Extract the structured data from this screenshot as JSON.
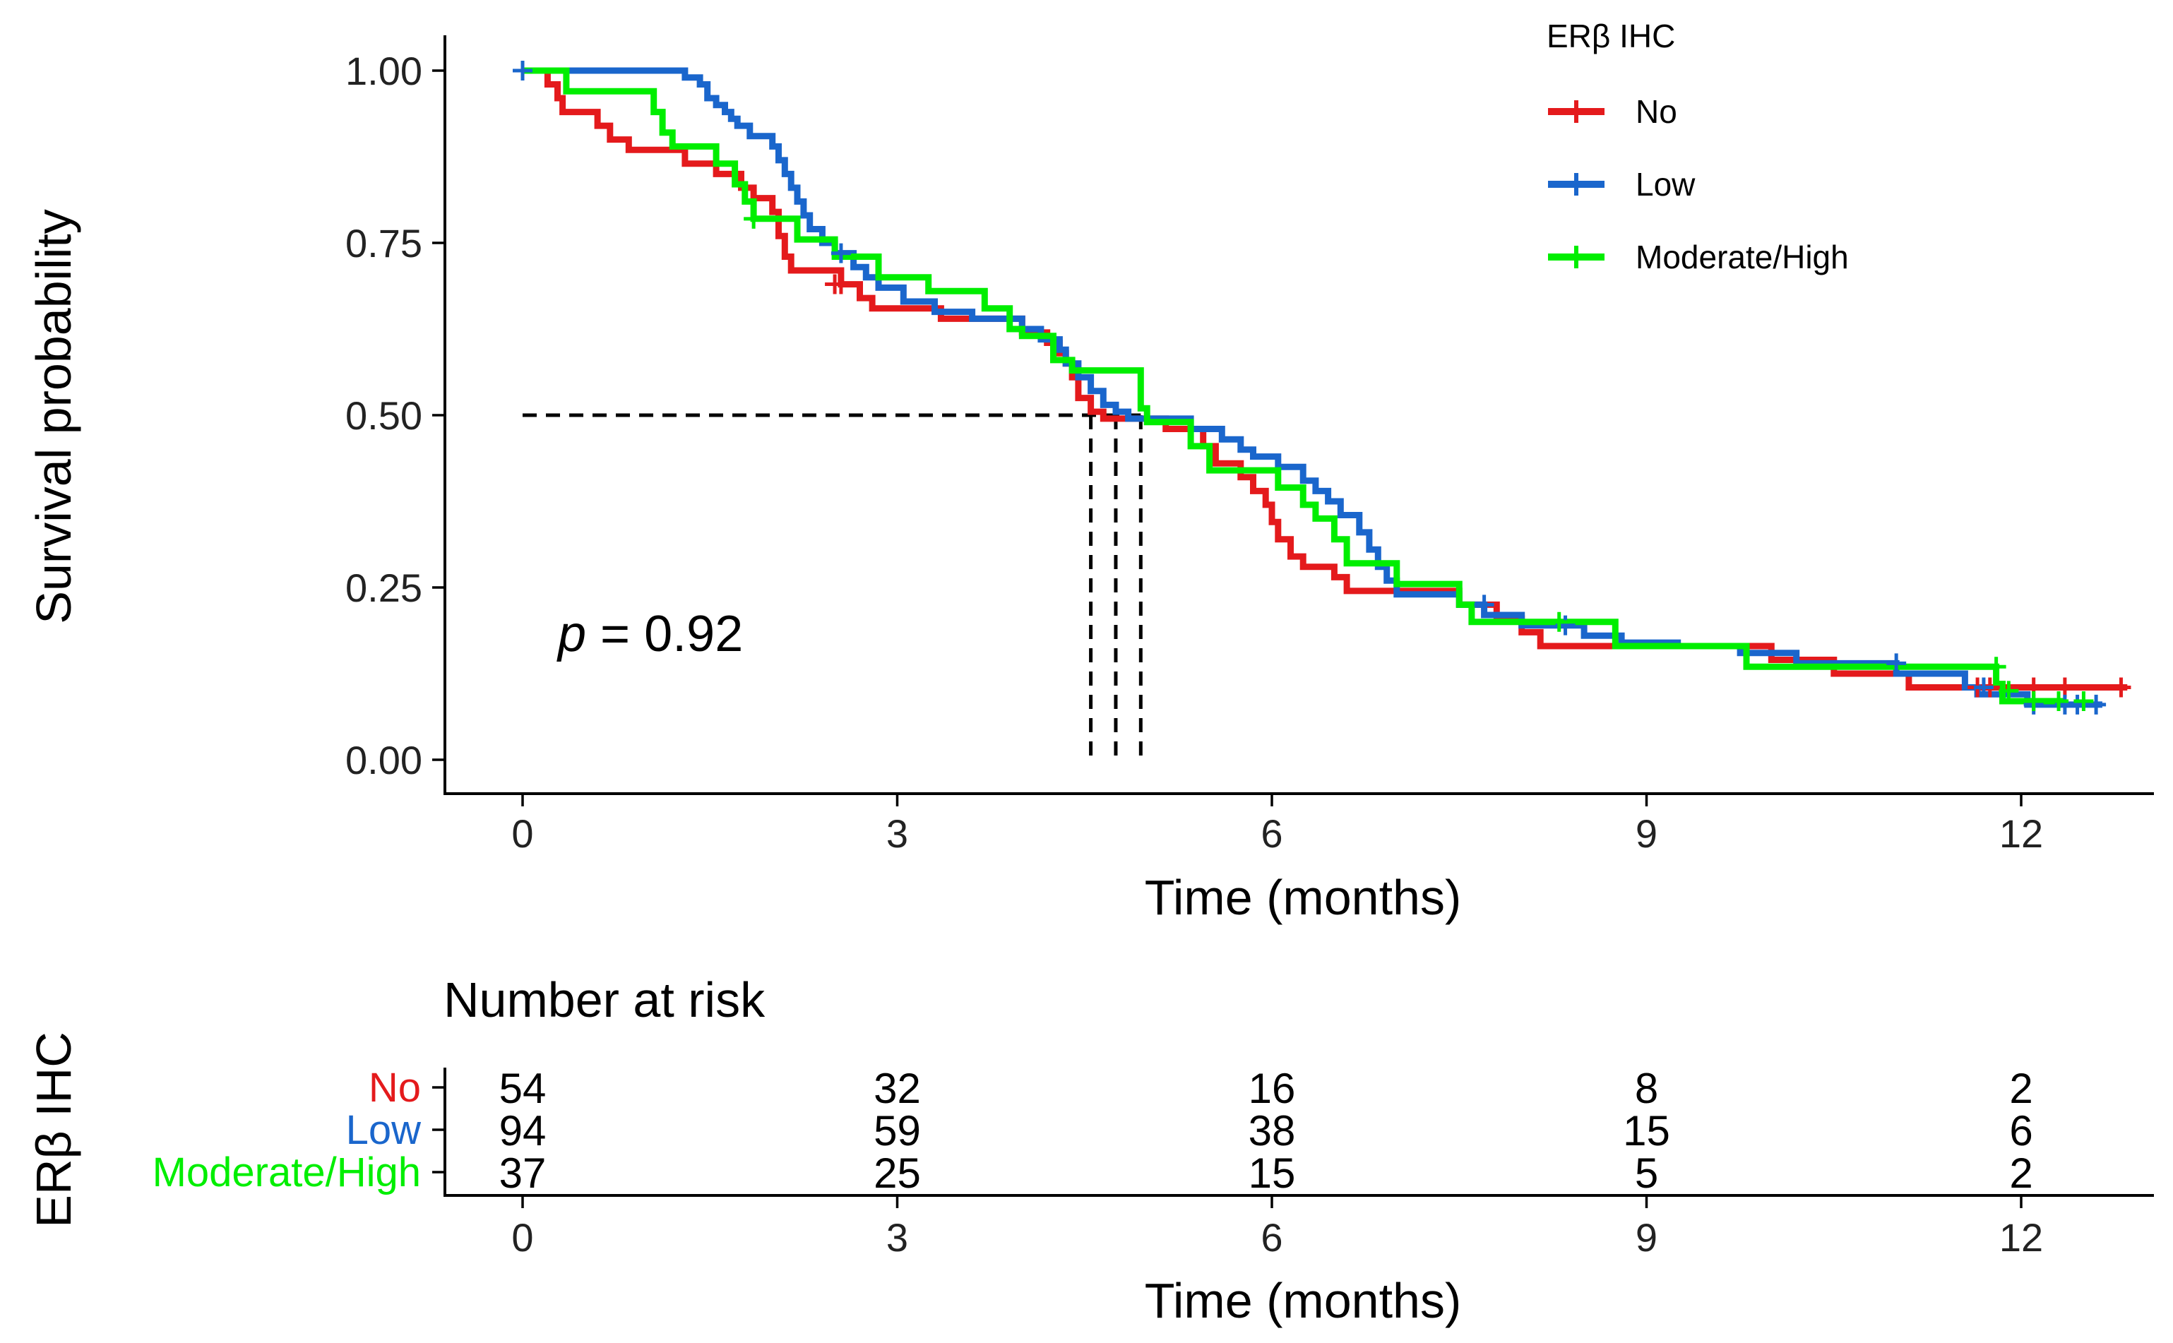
{
  "chart_data": {
    "type": "line",
    "subtype": "kaplan-meier",
    "legend_title": "ERβ IHC",
    "xlabel": "Time (months)",
    "ylabel": "Survival probability",
    "x_ticks": [
      0,
      3,
      6,
      9,
      12
    ],
    "y_ticks": [
      0.0,
      0.25,
      0.5,
      0.75,
      1.0
    ],
    "y_tick_labels": [
      "0.00",
      "0.25",
      "0.50",
      "0.75",
      "1.00"
    ],
    "xlim": [
      -0.6,
      12.95
    ],
    "ylim": [
      -0.05,
      1.05
    ],
    "p_value_label": "p",
    "p_value_text": " = 0.92",
    "legend_position": "top-right",
    "median_line_y": 0.5,
    "median_times": [
      4.55,
      4.75,
      4.95
    ],
    "series": [
      {
        "name": "No",
        "color": "#e41a1c",
        "points": [
          [
            0,
            1.0
          ],
          [
            0.2,
            1.0
          ],
          [
            0.2,
            0.98
          ],
          [
            0.28,
            0.98
          ],
          [
            0.28,
            0.96
          ],
          [
            0.32,
            0.96
          ],
          [
            0.32,
            0.94
          ],
          [
            0.6,
            0.94
          ],
          [
            0.6,
            0.92
          ],
          [
            0.7,
            0.92
          ],
          [
            0.7,
            0.9
          ],
          [
            0.85,
            0.9
          ],
          [
            0.85,
            0.885
          ],
          [
            1.3,
            0.885
          ],
          [
            1.3,
            0.865
          ],
          [
            1.55,
            0.865
          ],
          [
            1.55,
            0.85
          ],
          [
            1.75,
            0.85
          ],
          [
            1.75,
            0.83
          ],
          [
            1.85,
            0.83
          ],
          [
            1.85,
            0.815
          ],
          [
            2.0,
            0.815
          ],
          [
            2.0,
            0.795
          ],
          [
            2.05,
            0.795
          ],
          [
            2.05,
            0.76
          ],
          [
            2.1,
            0.76
          ],
          [
            2.1,
            0.73
          ],
          [
            2.15,
            0.73
          ],
          [
            2.15,
            0.71
          ],
          [
            2.55,
            0.71
          ],
          [
            2.55,
            0.69
          ],
          [
            2.7,
            0.69
          ],
          [
            2.7,
            0.67
          ],
          [
            2.8,
            0.67
          ],
          [
            2.8,
            0.655
          ],
          [
            3.35,
            0.655
          ],
          [
            3.35,
            0.64
          ],
          [
            4.0,
            0.64
          ],
          [
            4.0,
            0.62
          ],
          [
            4.2,
            0.62
          ],
          [
            4.2,
            0.605
          ],
          [
            4.3,
            0.605
          ],
          [
            4.3,
            0.59
          ],
          [
            4.35,
            0.59
          ],
          [
            4.35,
            0.575
          ],
          [
            4.4,
            0.575
          ],
          [
            4.4,
            0.555
          ],
          [
            4.45,
            0.555
          ],
          [
            4.45,
            0.525
          ],
          [
            4.55,
            0.525
          ],
          [
            4.55,
            0.505
          ],
          [
            4.65,
            0.505
          ],
          [
            4.65,
            0.495
          ],
          [
            5.15,
            0.495
          ],
          [
            5.15,
            0.48
          ],
          [
            5.45,
            0.48
          ],
          [
            5.45,
            0.455
          ],
          [
            5.55,
            0.455
          ],
          [
            5.55,
            0.43
          ],
          [
            5.75,
            0.43
          ],
          [
            5.75,
            0.41
          ],
          [
            5.85,
            0.41
          ],
          [
            5.85,
            0.39
          ],
          [
            5.95,
            0.39
          ],
          [
            5.95,
            0.37
          ],
          [
            6.0,
            0.37
          ],
          [
            6.0,
            0.345
          ],
          [
            6.05,
            0.345
          ],
          [
            6.05,
            0.32
          ],
          [
            6.15,
            0.32
          ],
          [
            6.15,
            0.295
          ],
          [
            6.25,
            0.295
          ],
          [
            6.25,
            0.28
          ],
          [
            6.5,
            0.28
          ],
          [
            6.5,
            0.265
          ],
          [
            6.6,
            0.265
          ],
          [
            6.6,
            0.245
          ],
          [
            7.5,
            0.245
          ],
          [
            7.5,
            0.225
          ],
          [
            7.8,
            0.225
          ],
          [
            7.8,
            0.205
          ],
          [
            8.0,
            0.205
          ],
          [
            8.0,
            0.185
          ],
          [
            8.15,
            0.185
          ],
          [
            8.15,
            0.165
          ],
          [
            10.0,
            0.165
          ],
          [
            10.0,
            0.145
          ],
          [
            10.5,
            0.145
          ],
          [
            10.5,
            0.125
          ],
          [
            11.1,
            0.125
          ],
          [
            11.1,
            0.105
          ],
          [
            12.85,
            0.105
          ]
        ],
        "censored": [
          [
            2.5,
            0.69
          ],
          [
            2.55,
            0.69
          ],
          [
            11.65,
            0.105
          ],
          [
            11.75,
            0.105
          ],
          [
            12.1,
            0.105
          ],
          [
            12.35,
            0.105
          ],
          [
            12.8,
            0.105
          ]
        ]
      },
      {
        "name": "Low",
        "color": "#1a66cc",
        "points": [
          [
            0,
            1.0
          ],
          [
            1.3,
            1.0
          ],
          [
            1.3,
            0.99
          ],
          [
            1.42,
            0.99
          ],
          [
            1.42,
            0.98
          ],
          [
            1.48,
            0.98
          ],
          [
            1.48,
            0.96
          ],
          [
            1.55,
            0.96
          ],
          [
            1.55,
            0.95
          ],
          [
            1.62,
            0.95
          ],
          [
            1.62,
            0.94
          ],
          [
            1.67,
            0.94
          ],
          [
            1.67,
            0.93
          ],
          [
            1.72,
            0.93
          ],
          [
            1.72,
            0.92
          ],
          [
            1.82,
            0.92
          ],
          [
            1.82,
            0.905
          ],
          [
            2.0,
            0.905
          ],
          [
            2.0,
            0.89
          ],
          [
            2.05,
            0.89
          ],
          [
            2.05,
            0.87
          ],
          [
            2.1,
            0.87
          ],
          [
            2.1,
            0.85
          ],
          [
            2.15,
            0.85
          ],
          [
            2.15,
            0.83
          ],
          [
            2.2,
            0.83
          ],
          [
            2.2,
            0.81
          ],
          [
            2.25,
            0.81
          ],
          [
            2.25,
            0.79
          ],
          [
            2.3,
            0.79
          ],
          [
            2.3,
            0.77
          ],
          [
            2.4,
            0.77
          ],
          [
            2.4,
            0.75
          ],
          [
            2.5,
            0.75
          ],
          [
            2.5,
            0.735
          ],
          [
            2.65,
            0.735
          ],
          [
            2.65,
            0.715
          ],
          [
            2.75,
            0.715
          ],
          [
            2.75,
            0.7
          ],
          [
            2.85,
            0.7
          ],
          [
            2.85,
            0.685
          ],
          [
            3.05,
            0.685
          ],
          [
            3.05,
            0.665
          ],
          [
            3.3,
            0.665
          ],
          [
            3.3,
            0.65
          ],
          [
            3.6,
            0.65
          ],
          [
            3.6,
            0.64
          ],
          [
            4.0,
            0.64
          ],
          [
            4.0,
            0.625
          ],
          [
            4.15,
            0.625
          ],
          [
            4.15,
            0.61
          ],
          [
            4.3,
            0.61
          ],
          [
            4.3,
            0.595
          ],
          [
            4.35,
            0.595
          ],
          [
            4.35,
            0.575
          ],
          [
            4.45,
            0.575
          ],
          [
            4.45,
            0.555
          ],
          [
            4.55,
            0.555
          ],
          [
            4.55,
            0.535
          ],
          [
            4.65,
            0.535
          ],
          [
            4.65,
            0.515
          ],
          [
            4.75,
            0.515
          ],
          [
            4.75,
            0.505
          ],
          [
            4.85,
            0.505
          ],
          [
            4.85,
            0.495
          ],
          [
            5.35,
            0.495
          ],
          [
            5.35,
            0.48
          ],
          [
            5.6,
            0.48
          ],
          [
            5.6,
            0.465
          ],
          [
            5.75,
            0.465
          ],
          [
            5.75,
            0.45
          ],
          [
            5.85,
            0.45
          ],
          [
            5.85,
            0.44
          ],
          [
            6.05,
            0.44
          ],
          [
            6.05,
            0.425
          ],
          [
            6.25,
            0.425
          ],
          [
            6.25,
            0.405
          ],
          [
            6.35,
            0.405
          ],
          [
            6.35,
            0.39
          ],
          [
            6.45,
            0.39
          ],
          [
            6.45,
            0.375
          ],
          [
            6.55,
            0.375
          ],
          [
            6.55,
            0.355
          ],
          [
            6.7,
            0.355
          ],
          [
            6.7,
            0.33
          ],
          [
            6.78,
            0.33
          ],
          [
            6.78,
            0.305
          ],
          [
            6.85,
            0.305
          ],
          [
            6.85,
            0.28
          ],
          [
            6.92,
            0.28
          ],
          [
            6.92,
            0.26
          ],
          [
            7.0,
            0.26
          ],
          [
            7.0,
            0.24
          ],
          [
            7.5,
            0.24
          ],
          [
            7.5,
            0.225
          ],
          [
            7.7,
            0.225
          ],
          [
            7.7,
            0.21
          ],
          [
            8.0,
            0.21
          ],
          [
            8.0,
            0.195
          ],
          [
            8.5,
            0.195
          ],
          [
            8.5,
            0.18
          ],
          [
            8.8,
            0.18
          ],
          [
            8.8,
            0.17
          ],
          [
            9.25,
            0.17
          ],
          [
            9.25,
            0.165
          ],
          [
            9.75,
            0.165
          ],
          [
            9.75,
            0.155
          ],
          [
            10.2,
            0.155
          ],
          [
            10.2,
            0.14
          ],
          [
            11.0,
            0.14
          ],
          [
            11.0,
            0.125
          ],
          [
            11.55,
            0.125
          ],
          [
            11.55,
            0.105
          ],
          [
            11.65,
            0.105
          ],
          [
            11.65,
            0.095
          ],
          [
            12.05,
            0.095
          ],
          [
            12.05,
            0.08
          ],
          [
            12.65,
            0.08
          ]
        ],
        "censored": [
          [
            0,
            1.0
          ],
          [
            2.55,
            0.735
          ],
          [
            7.7,
            0.225
          ],
          [
            8.35,
            0.195
          ],
          [
            11.0,
            0.14
          ],
          [
            11.7,
            0.105
          ],
          [
            12.1,
            0.08
          ],
          [
            12.35,
            0.08
          ],
          [
            12.45,
            0.08
          ],
          [
            12.6,
            0.08
          ]
        ]
      },
      {
        "name": "Moderate/High",
        "color": "#00ee00",
        "points": [
          [
            0,
            1.0
          ],
          [
            0.35,
            1.0
          ],
          [
            0.35,
            0.97
          ],
          [
            1.05,
            0.97
          ],
          [
            1.05,
            0.94
          ],
          [
            1.12,
            0.94
          ],
          [
            1.12,
            0.91
          ],
          [
            1.2,
            0.91
          ],
          [
            1.2,
            0.89
          ],
          [
            1.55,
            0.89
          ],
          [
            1.55,
            0.865
          ],
          [
            1.7,
            0.865
          ],
          [
            1.7,
            0.835
          ],
          [
            1.78,
            0.835
          ],
          [
            1.78,
            0.81
          ],
          [
            1.85,
            0.81
          ],
          [
            1.85,
            0.785
          ],
          [
            2.2,
            0.785
          ],
          [
            2.2,
            0.755
          ],
          [
            2.5,
            0.755
          ],
          [
            2.5,
            0.73
          ],
          [
            2.85,
            0.73
          ],
          [
            2.85,
            0.7
          ],
          [
            3.25,
            0.7
          ],
          [
            3.25,
            0.68
          ],
          [
            3.7,
            0.68
          ],
          [
            3.7,
            0.655
          ],
          [
            3.9,
            0.655
          ],
          [
            3.9,
            0.625
          ],
          [
            4.0,
            0.625
          ],
          [
            4.0,
            0.615
          ],
          [
            4.25,
            0.615
          ],
          [
            4.25,
            0.58
          ],
          [
            4.4,
            0.58
          ],
          [
            4.4,
            0.565
          ],
          [
            4.95,
            0.565
          ],
          [
            4.95,
            0.51
          ],
          [
            5.0,
            0.51
          ],
          [
            5.0,
            0.49
          ],
          [
            5.35,
            0.49
          ],
          [
            5.35,
            0.455
          ],
          [
            5.5,
            0.455
          ],
          [
            5.5,
            0.42
          ],
          [
            6.05,
            0.42
          ],
          [
            6.05,
            0.395
          ],
          [
            6.25,
            0.395
          ],
          [
            6.25,
            0.37
          ],
          [
            6.35,
            0.37
          ],
          [
            6.35,
            0.35
          ],
          [
            6.5,
            0.35
          ],
          [
            6.5,
            0.32
          ],
          [
            6.6,
            0.32
          ],
          [
            6.6,
            0.285
          ],
          [
            7.0,
            0.285
          ],
          [
            7.0,
            0.255
          ],
          [
            7.5,
            0.255
          ],
          [
            7.5,
            0.225
          ],
          [
            7.6,
            0.225
          ],
          [
            7.6,
            0.2
          ],
          [
            8.75,
            0.2
          ],
          [
            8.75,
            0.165
          ],
          [
            9.8,
            0.165
          ],
          [
            9.8,
            0.135
          ],
          [
            11.8,
            0.135
          ],
          [
            11.8,
            0.11
          ],
          [
            11.85,
            0.11
          ],
          [
            11.85,
            0.085
          ],
          [
            12.35,
            0.085
          ]
        ],
        "censored": [
          [
            1.85,
            0.785
          ],
          [
            8.3,
            0.2
          ],
          [
            11.8,
            0.135
          ],
          [
            11.9,
            0.1
          ],
          [
            12.1,
            0.085
          ],
          [
            12.3,
            0.085
          ],
          [
            12.5,
            0.085
          ]
        ]
      }
    ]
  },
  "risk_table": {
    "title": "Number at risk",
    "ylabel": "ERβ IHC",
    "xlabel": "Time (months)",
    "times": [
      0,
      3,
      6,
      9,
      12
    ],
    "rows": [
      {
        "label": "No",
        "color": "#e41a1c",
        "counts": [
          "54",
          "32",
          "16",
          "8",
          "2"
        ]
      },
      {
        "label": "Low",
        "color": "#1a66cc",
        "counts": [
          "94",
          "59",
          "38",
          "15",
          "6"
        ]
      },
      {
        "label": "Moderate/High",
        "color": "#00ee00",
        "counts": [
          "37",
          "25",
          "15",
          "5",
          "2"
        ]
      }
    ]
  }
}
